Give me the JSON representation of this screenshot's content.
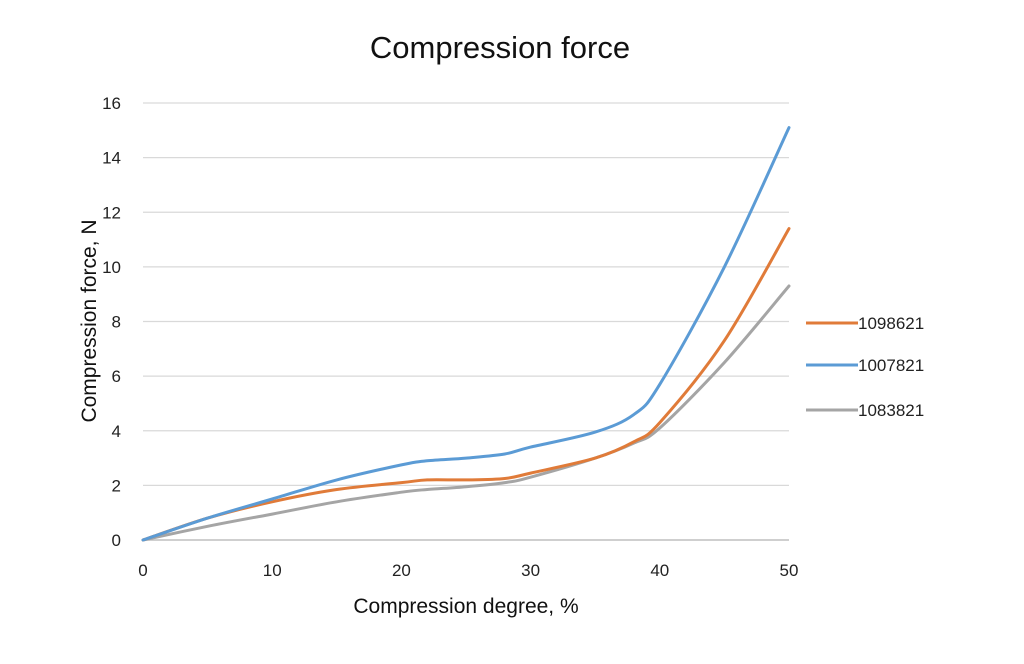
{
  "chart_data": {
    "type": "line",
    "title": "Compression force",
    "xlabel": "Compression degree, %",
    "ylabel": "Compression force, N",
    "xlim": [
      0,
      50
    ],
    "ylim": [
      0,
      16
    ],
    "x_ticks": [
      0,
      10,
      20,
      30,
      40,
      50
    ],
    "y_ticks": [
      0,
      2,
      4,
      6,
      8,
      10,
      12,
      14,
      16
    ],
    "grid": "horizontal",
    "legend_position": "right",
    "x": [
      0,
      5,
      10,
      15,
      20,
      22,
      25,
      28,
      30,
      35,
      38,
      40,
      45,
      50
    ],
    "series": [
      {
        "name": "1098621",
        "color": "#E07B39",
        "values": [
          0,
          0.8,
          1.4,
          1.85,
          2.1,
          2.2,
          2.2,
          2.25,
          2.45,
          3.0,
          3.6,
          4.3,
          7.3,
          11.4
        ]
      },
      {
        "name": "1007821",
        "color": "#5B9BD5",
        "values": [
          0,
          0.8,
          1.5,
          2.2,
          2.75,
          2.9,
          3.0,
          3.15,
          3.4,
          3.95,
          4.6,
          5.7,
          10.0,
          15.1
        ]
      },
      {
        "name": "1083821",
        "color": "#A5A5A5",
        "values": [
          0,
          0.5,
          0.95,
          1.4,
          1.75,
          1.85,
          1.95,
          2.1,
          2.3,
          3.0,
          3.55,
          4.1,
          6.5,
          9.3
        ]
      }
    ]
  }
}
